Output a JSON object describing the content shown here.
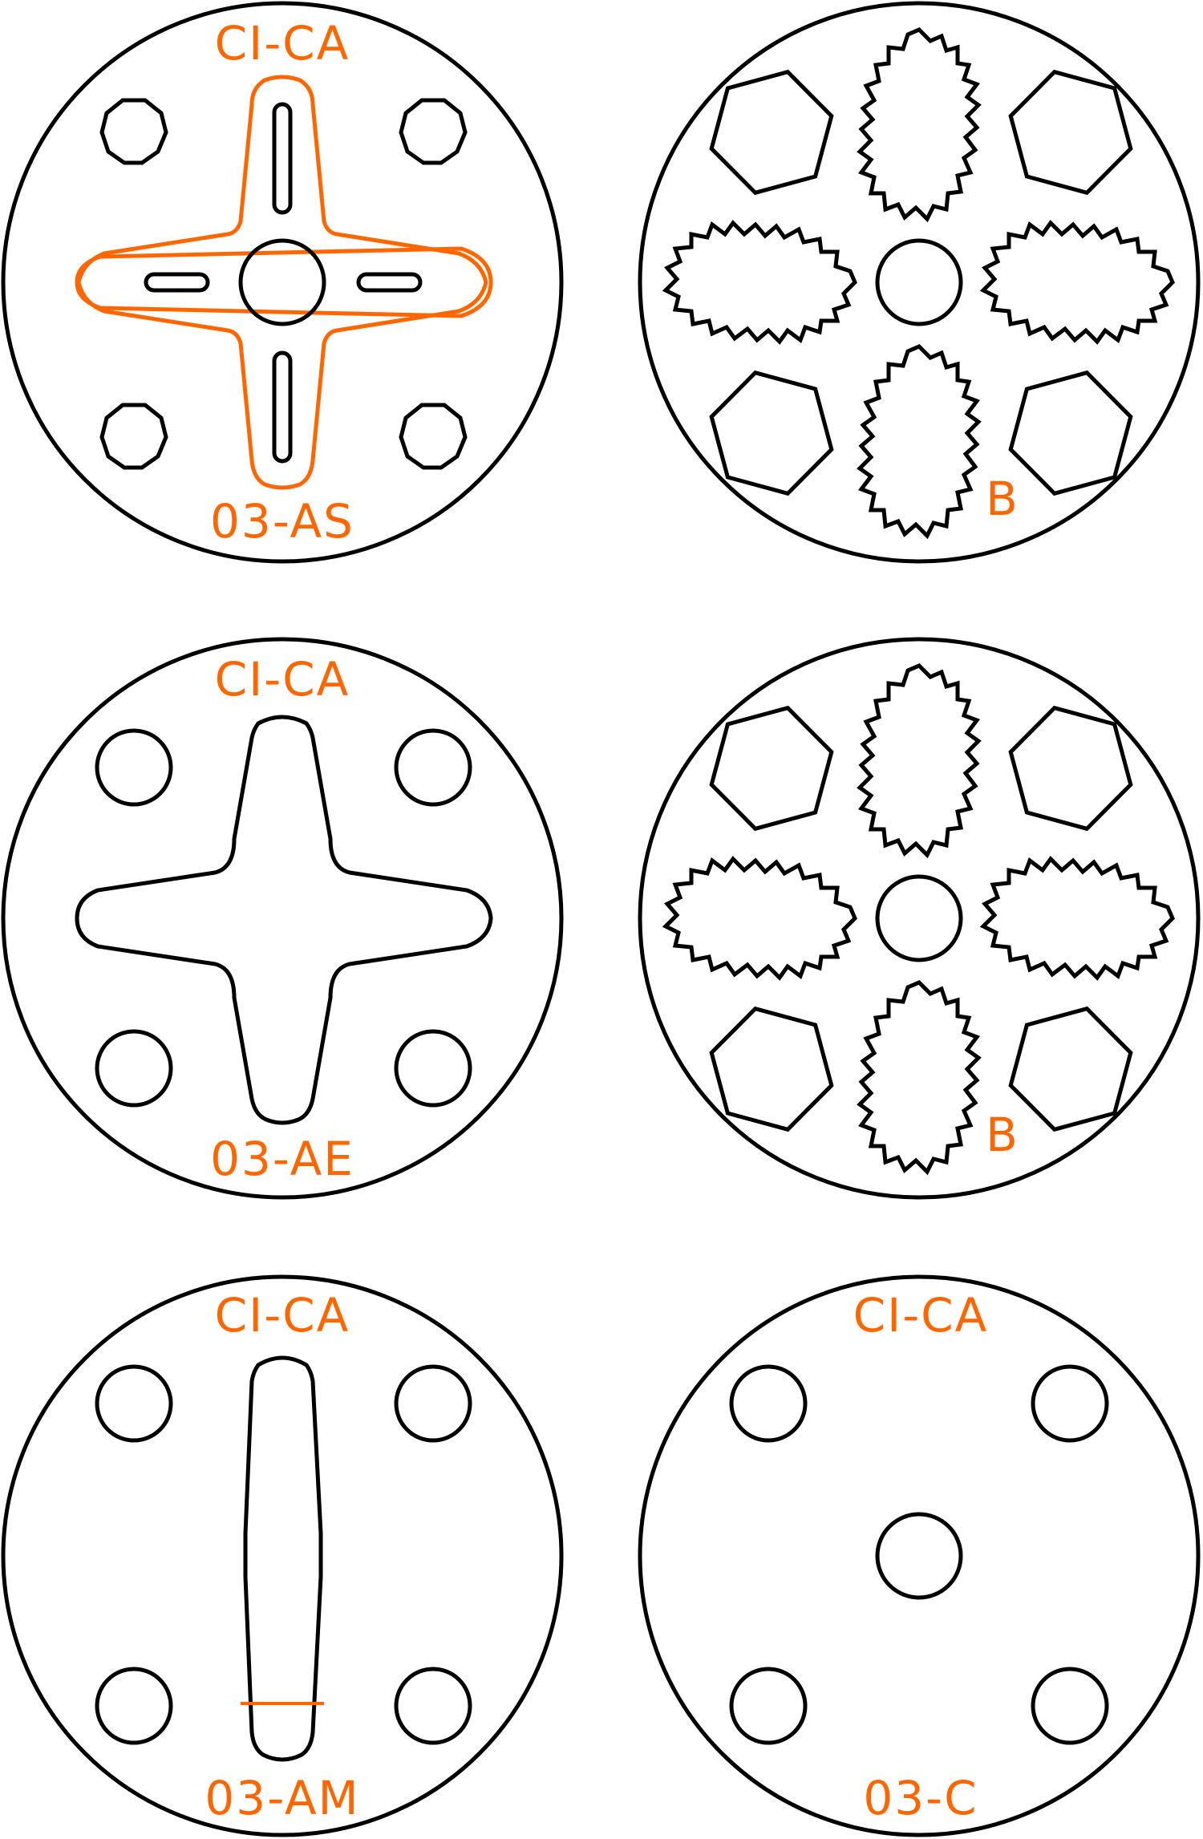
{
  "colors": {
    "ink": "#000000",
    "accent": "#ff6600",
    "background": "#ffffff"
  },
  "plates": [
    {
      "id": "as",
      "top_label": "CI-CA",
      "bottom_label": "03-AS"
    },
    {
      "id": "b1",
      "top_label": "",
      "bottom_label": "B"
    },
    {
      "id": "ae",
      "top_label": "CI-CA",
      "bottom_label": "03-AE"
    },
    {
      "id": "b2",
      "top_label": "",
      "bottom_label": "B"
    },
    {
      "id": "am",
      "top_label": "CI-CA",
      "bottom_label": "03-AM"
    },
    {
      "id": "c",
      "top_label": "CI-CA",
      "bottom_label": "03-C"
    }
  ]
}
